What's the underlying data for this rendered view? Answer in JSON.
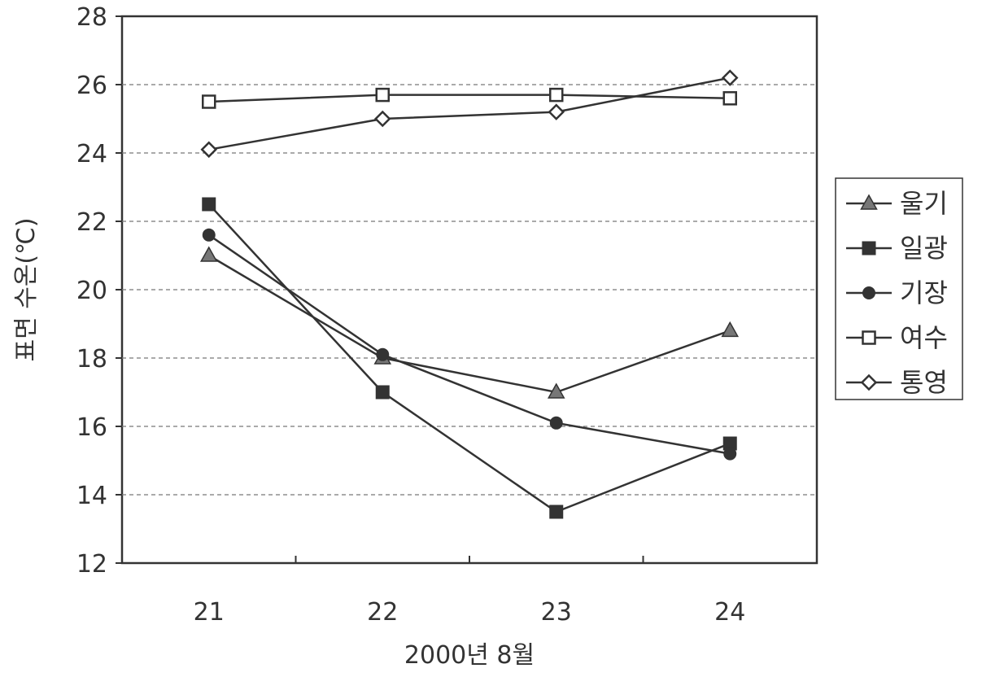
{
  "chart_data": {
    "type": "line",
    "xlabel": "2000년 8월",
    "ylabel": "표면 수온(℃)",
    "categories": [
      "21",
      "22",
      "23",
      "24"
    ],
    "y_ticks": [
      "12",
      "14",
      "16",
      "18",
      "20",
      "22",
      "24",
      "26",
      "28"
    ],
    "ylim": [
      12,
      28
    ],
    "grid": "horizontal dashed",
    "legend_position": "right",
    "series": [
      {
        "name": "울기",
        "marker": "triangle",
        "values": [
          21.0,
          18.0,
          17.0,
          18.8
        ]
      },
      {
        "name": "일광",
        "marker": "square-filled",
        "values": [
          22.5,
          17.0,
          13.5,
          15.5
        ]
      },
      {
        "name": "기장",
        "marker": "circle-filled",
        "values": [
          21.6,
          18.1,
          16.1,
          15.2
        ]
      },
      {
        "name": "여수",
        "marker": "square-open",
        "values": [
          25.5,
          25.7,
          25.7,
          25.6
        ]
      },
      {
        "name": "통영",
        "marker": "diamond-open",
        "values": [
          24.1,
          25.0,
          25.2,
          26.2
        ]
      }
    ]
  },
  "colors": {
    "line": "#333333",
    "triangle_fill": "#777777",
    "grid": "#777777"
  }
}
